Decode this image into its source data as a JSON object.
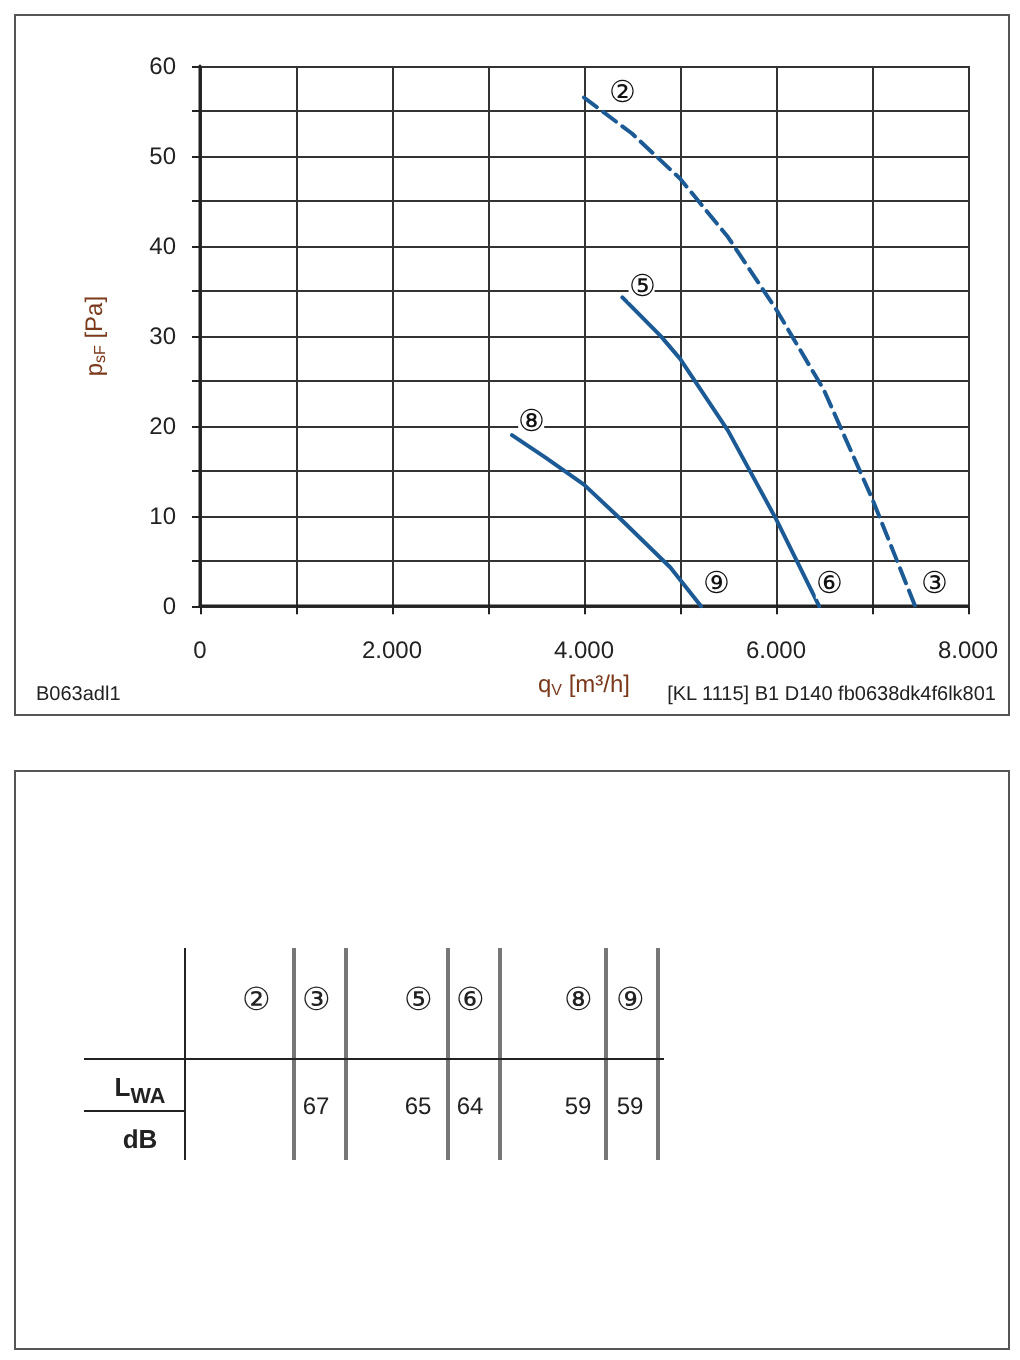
{
  "chart_data": {
    "type": "line",
    "xlabel": "q$_{V}$ [m³/h]",
    "ylabel": "p$_{sF}$ [Pa]",
    "xlim": [
      0,
      8000
    ],
    "ylim": [
      0,
      60
    ],
    "xticks": [
      0,
      {
        "value": 1000,
        "label": null
      },
      {
        "value": 2000,
        "label": "2.000"
      },
      {
        "value": 3000,
        "label": null
      },
      {
        "value": 4000,
        "label": "4.000"
      },
      {
        "value": 5000,
        "label": null
      },
      {
        "value": 6000,
        "label": "6.000"
      },
      {
        "value": 7000,
        "label": null
      },
      {
        "value": 8000,
        "label": "8.000"
      }
    ],
    "yticks": [
      0,
      {
        "value": 5,
        "label": null
      },
      10,
      {
        "value": 15,
        "label": null
      },
      20,
      {
        "value": 25,
        "label": null
      },
      30,
      {
        "value": 35,
        "label": null
      },
      40,
      {
        "value": 45,
        "label": null
      },
      50,
      {
        "value": 55,
        "label": null
      },
      60
    ],
    "grid": true,
    "marker": "none",
    "series": [
      {
        "color": "#1b5a94",
        "line_style": "dashed",
        "x": [
          4000,
          4500,
          5000,
          5500,
          6000,
          6500,
          7000,
          7450
        ],
        "values": [
          56.5,
          52.5,
          47.5,
          41,
          33,
          24,
          12,
          0
        ]
      },
      {
        "color": "#1b5a94",
        "line_style": "solid",
        "x": [
          4400,
          4800,
          5000,
          5500,
          6000,
          6450
        ],
        "values": [
          34.3,
          30,
          27.5,
          19.5,
          9.7,
          0
        ]
      },
      {
        "color": "#1b5a94",
        "line_style": "solid",
        "x": [
          3250,
          3600,
          4000,
          4400,
          4900,
          5220
        ],
        "values": [
          19,
          16.5,
          13.5,
          9.5,
          4.3,
          0
        ]
      }
    ],
    "annotations": [
      {
        "text": "②",
        "x": 4400,
        "y": 57
      },
      {
        "text": "⑤",
        "x": 4600,
        "y": 35.5
      },
      {
        "text": "⑧",
        "x": 3450,
        "y": 20.5
      },
      {
        "text": "⑨",
        "x": 5380,
        "y": 2.5
      },
      {
        "text": "⑥",
        "x": 6550,
        "y": 2.5
      },
      {
        "text": "③",
        "x": 7650,
        "y": 2.5
      },
      "B063adl1",
      "[KL 1115] B1 D140 fb0638dk4f6lk801",
      "L$_{WA}$",
      "dB",
      "②",
      "③",
      "⑤",
      "⑥",
      "⑧",
      "⑨",
      "67",
      "65",
      "64",
      "59",
      "59"
    ]
  }
}
